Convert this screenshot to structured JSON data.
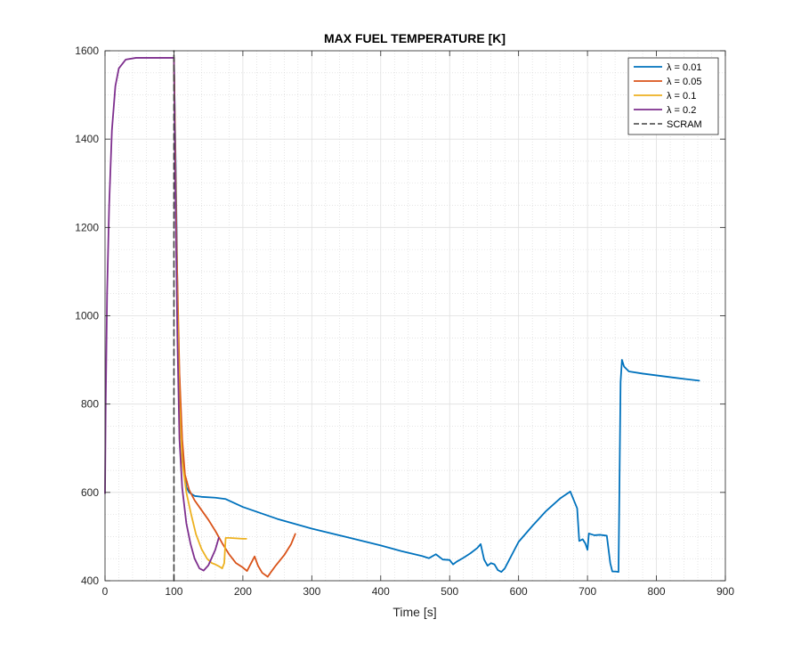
{
  "chart_data": {
    "type": "line",
    "title": "MAX FUEL TEMPERATURE [K]",
    "xlabel": "Time [s]",
    "ylabel": "",
    "xlim": [
      0,
      900
    ],
    "ylim": [
      400,
      1600
    ],
    "xticks": [
      0,
      100,
      200,
      300,
      400,
      500,
      600,
      700,
      800,
      900
    ],
    "yticks": [
      400,
      600,
      800,
      1000,
      1200,
      1400,
      1600
    ],
    "grid": true,
    "minor_grid": true,
    "legend_position": "top-right",
    "series": [
      {
        "name": "λ = 0.01",
        "color": "#0072BD",
        "style": "solid",
        "points": [
          [
            100,
            1584
          ],
          [
            103,
            1300
          ],
          [
            106,
            950
          ],
          [
            110,
            770
          ],
          [
            114,
            650
          ],
          [
            118,
            612
          ],
          [
            122,
            600
          ],
          [
            130,
            592
          ],
          [
            140,
            590
          ],
          [
            160,
            588
          ],
          [
            175,
            585
          ],
          [
            200,
            567
          ],
          [
            250,
            540
          ],
          [
            300,
            518
          ],
          [
            350,
            499
          ],
          [
            400,
            480
          ],
          [
            430,
            467
          ],
          [
            460,
            456
          ],
          [
            470,
            451
          ],
          [
            480,
            460
          ],
          [
            490,
            448
          ],
          [
            500,
            447
          ],
          [
            505,
            437
          ],
          [
            510,
            443
          ],
          [
            520,
            452
          ],
          [
            530,
            462
          ],
          [
            540,
            474
          ],
          [
            545,
            483
          ],
          [
            550,
            448
          ],
          [
            555,
            434
          ],
          [
            560,
            440
          ],
          [
            565,
            437
          ],
          [
            570,
            424
          ],
          [
            575,
            420
          ],
          [
            580,
            428
          ],
          [
            600,
            488
          ],
          [
            620,
            524
          ],
          [
            640,
            558
          ],
          [
            660,
            586
          ],
          [
            675,
            602
          ],
          [
            685,
            564
          ],
          [
            688,
            490
          ],
          [
            693,
            494
          ],
          [
            697,
            484
          ],
          [
            700,
            470
          ],
          [
            702,
            507
          ],
          [
            710,
            503
          ],
          [
            718,
            504
          ],
          [
            728,
            502
          ],
          [
            733,
            440
          ],
          [
            736,
            421
          ],
          [
            741,
            421
          ],
          [
            745,
            420
          ],
          [
            748,
            850
          ],
          [
            750,
            900
          ],
          [
            753,
            885
          ],
          [
            760,
            874
          ],
          [
            780,
            869
          ],
          [
            800,
            865
          ],
          [
            820,
            861
          ],
          [
            840,
            857
          ],
          [
            862,
            853
          ]
        ]
      },
      {
        "name": "λ = 0.05",
        "color": "#D95319",
        "style": "solid",
        "points": [
          [
            100,
            1584
          ],
          [
            104,
            1150
          ],
          [
            108,
            870
          ],
          [
            112,
            720
          ],
          [
            116,
            640
          ],
          [
            122,
            606
          ],
          [
            130,
            582
          ],
          [
            140,
            560
          ],
          [
            150,
            538
          ],
          [
            160,
            513
          ],
          [
            170,
            485
          ],
          [
            180,
            460
          ],
          [
            190,
            440
          ],
          [
            200,
            430
          ],
          [
            206,
            422
          ],
          [
            212,
            440
          ],
          [
            217,
            455
          ],
          [
            222,
            434
          ],
          [
            228,
            418
          ],
          [
            236,
            409
          ],
          [
            240,
            418
          ],
          [
            248,
            435
          ],
          [
            260,
            458
          ],
          [
            270,
            483
          ],
          [
            276,
            506
          ]
        ]
      },
      {
        "name": "λ = 0.1",
        "color": "#EDB120",
        "style": "solid",
        "points": [
          [
            100,
            1584
          ],
          [
            104,
            1100
          ],
          [
            108,
            800
          ],
          [
            112,
            670
          ],
          [
            118,
            600
          ],
          [
            125,
            550
          ],
          [
            132,
            505
          ],
          [
            140,
            472
          ],
          [
            148,
            450
          ],
          [
            155,
            440
          ],
          [
            160,
            437
          ],
          [
            165,
            433
          ],
          [
            170,
            428
          ],
          [
            173,
            440
          ],
          [
            175,
            497
          ],
          [
            180,
            497
          ],
          [
            190,
            496
          ],
          [
            200,
            495
          ],
          [
            205,
            495
          ]
        ]
      },
      {
        "name": "λ = 0.2",
        "color": "#7E2F8E",
        "style": "solid",
        "points": [
          [
            0,
            598
          ],
          [
            1,
            800
          ],
          [
            3,
            1050
          ],
          [
            6,
            1250
          ],
          [
            10,
            1420
          ],
          [
            15,
            1520
          ],
          [
            20,
            1560
          ],
          [
            30,
            1580
          ],
          [
            45,
            1584
          ],
          [
            100,
            1584
          ],
          [
            102,
            1300
          ],
          [
            105,
            950
          ],
          [
            108,
            720
          ],
          [
            112,
            610
          ],
          [
            118,
            530
          ],
          [
            124,
            484
          ],
          [
            130,
            450
          ],
          [
            137,
            428
          ],
          [
            143,
            423
          ],
          [
            150,
            435
          ],
          [
            160,
            470
          ],
          [
            165,
            497
          ]
        ]
      },
      {
        "name": "SCRAM",
        "color": "#404040",
        "style": "dashed",
        "points": [
          [
            100,
            400
          ],
          [
            100,
            1600
          ]
        ]
      }
    ]
  }
}
